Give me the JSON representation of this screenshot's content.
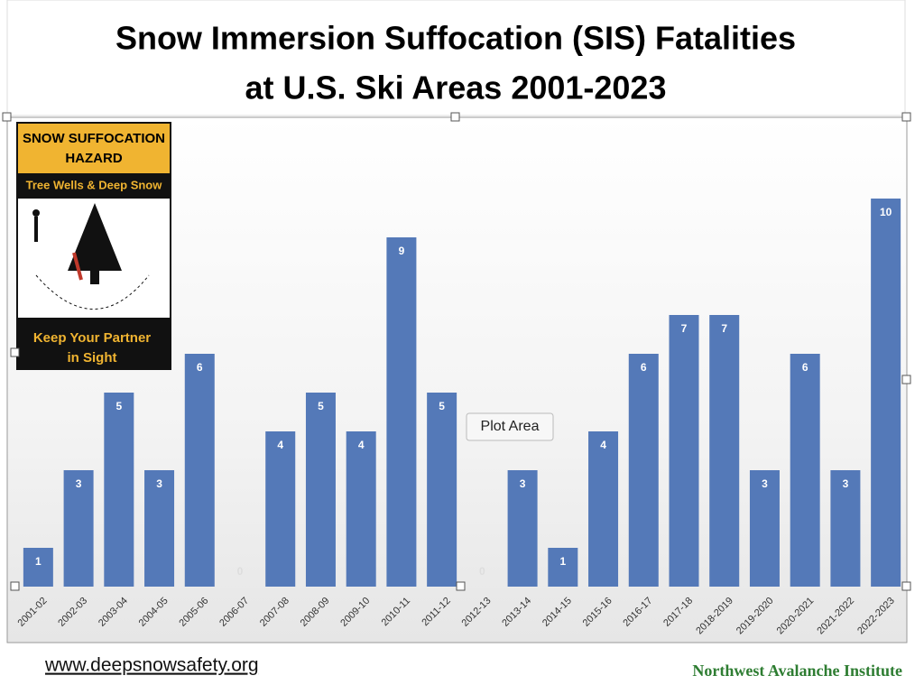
{
  "chart_data": {
    "type": "bar",
    "title": [
      "Snow Immersion Suffocation (SIS) Fatalities",
      "at U.S. Ski Areas 2001-2023"
    ],
    "categories": [
      "2001-02",
      "2002-03",
      "2003-04",
      "2004-05",
      "2005-06",
      "2006-07",
      "2007-08",
      "2008-09",
      "2009-10",
      "2010-11",
      "2011-12",
      "2012-13",
      "2013-14",
      "2014-15",
      "2015-16",
      "2016-17",
      "2017-18",
      "2018-2019",
      "2019-2020",
      "2020-2021",
      "2021-2022",
      "2022-2023"
    ],
    "values": [
      1,
      3,
      5,
      3,
      6,
      0,
      4,
      5,
      4,
      9,
      5,
      0,
      3,
      1,
      4,
      6,
      7,
      7,
      3,
      6,
      3,
      10
    ],
    "color": "#5479b8"
  },
  "sign": {
    "header": [
      "SNOW SUFFOCATION",
      "HAZARD"
    ],
    "band": "Tree Wells & Deep Snow",
    "footer": [
      "Keep Your Partner",
      "in Sight"
    ]
  },
  "tooltip": "Plot Area",
  "footer": {
    "url": "www.deepsnowsafety.org",
    "credit": "Northwest Avalanche Institute"
  }
}
